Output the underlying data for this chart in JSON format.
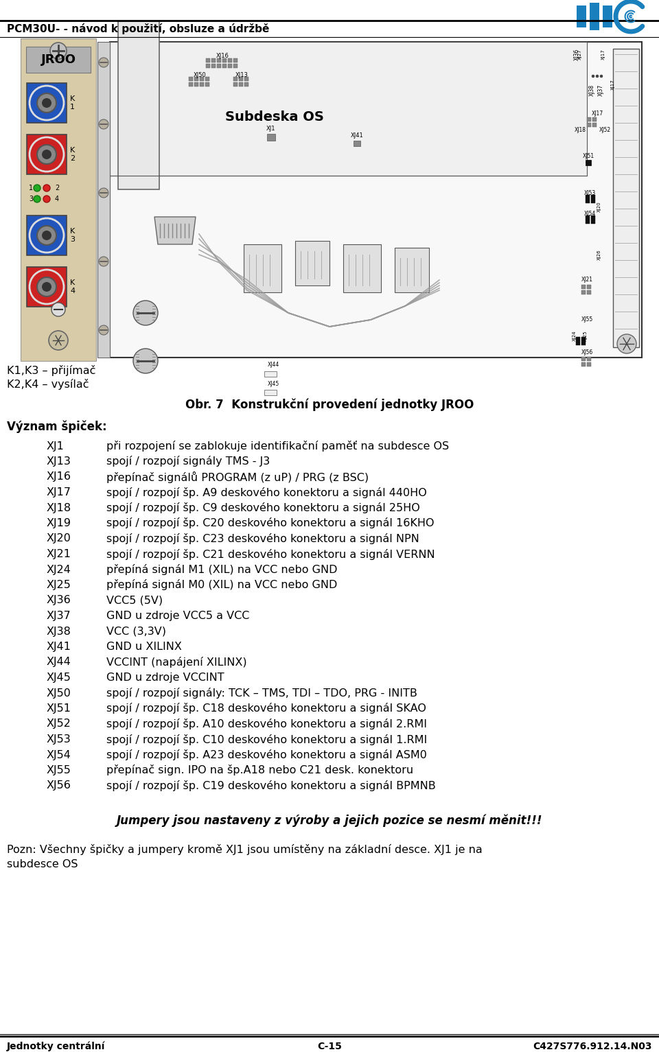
{
  "header_text": "PCM30U- - návod k použití, obsluze a údržbě",
  "footer_left": "Jednotky centrální",
  "footer_center": "C-15",
  "footer_right": "C427S776.912.14.N03",
  "k_label1": "K1,K3 – přijímač",
  "k_label2": "K2,K4 – vysílač",
  "figure_caption": "Obr. 7  Konstrukční provedení jednotky JROO",
  "section_title": "Význam špiček:",
  "entries": [
    [
      "XJ1",
      "při rozpojení se zablokuje identifikační paměť na subdesce OS"
    ],
    [
      "XJ13",
      "spojí / rozpojí signály TMS - J3"
    ],
    [
      "XJ16",
      "přepínač signálů PROGRAM (z uP) / PRG (z BSC)"
    ],
    [
      "XJ17",
      "spojí / rozpojí šp. A9 deskového konektoru a signál 440HO"
    ],
    [
      "XJ18",
      "spojí / rozpojí šp. C9 deskového konektoru a signál 25HO"
    ],
    [
      "XJ19",
      "spojí / rozpojí šp. C20 deskového konektoru a signál 16KHO"
    ],
    [
      "XJ20",
      "spojí / rozpojí šp. C23 deskového konektoru a signál NPN"
    ],
    [
      "XJ21",
      "spojí / rozpojí šp. C21 deskového konektoru a signál VERNN"
    ],
    [
      "XJ24",
      "přepíná signál M1 (XIL) na VCC nebo GND"
    ],
    [
      "XJ25",
      "přepíná signál M0 (XIL) na VCC nebo GND"
    ],
    [
      "XJ36",
      "VCC5 (5V)"
    ],
    [
      "XJ37",
      "GND u zdroje VCC5 a VCC"
    ],
    [
      "XJ38",
      "VCC (3,3V)"
    ],
    [
      "XJ41",
      "GND u XILINX"
    ],
    [
      "XJ44",
      "VCCINT (napájení XILINX)"
    ],
    [
      "XJ45",
      "GND u zdroje VCCINT"
    ],
    [
      "XJ50",
      "spojí / rozpojí signály: TCK – TMS, TDI – TDO, PRG - INITB"
    ],
    [
      "XJ51",
      "spojí / rozpojí šp. C18 deskového konektoru a signál SKAO"
    ],
    [
      "XJ52",
      "spojí / rozpojí šp. A10 deskového konektoru a signál 2.RMI"
    ],
    [
      "XJ53",
      "spojí / rozpojí šp. C10 deskového konektoru a signál 1.RMI"
    ],
    [
      "XJ54",
      "spojí / rozpojí šp. A23 deskového konektoru a signál ASM0"
    ],
    [
      "XJ55",
      "přepínač sign. IPO na šp.A18 nebo C21 desk. konektoru"
    ],
    [
      "XJ56",
      "spojí / rozpojí šp. C19 deskového konektoru a signál BPMNB"
    ]
  ],
  "italic_note": "Jumpery jsou nastaveny z výroby a jejich pozice se nesmí měnit!!!",
  "note_line1": "Pozn: Všechny špičky a jumpery kromě XJ1 jsou umístěny na základní desce. XJ1 je na",
  "note_line2": "subdesce OS",
  "bg_color": "#ffffff",
  "text_color": "#000000",
  "logo_color": "#1a7fbd"
}
